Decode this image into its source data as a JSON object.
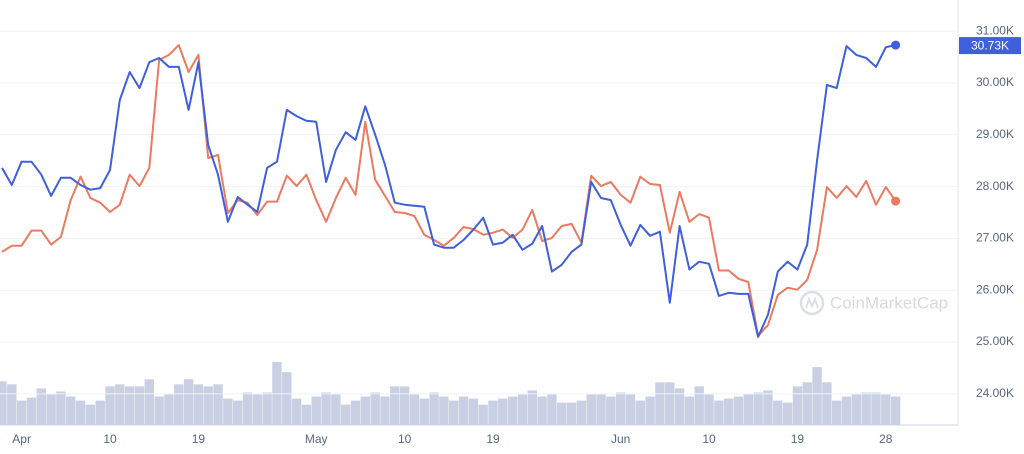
{
  "chart_data": {
    "type": "line",
    "categories": [
      null,
      null,
      "Apr",
      null,
      null,
      null,
      null,
      null,
      null,
      null,
      null,
      "10",
      null,
      null,
      null,
      null,
      null,
      null,
      null,
      null,
      "19",
      null,
      null,
      null,
      null,
      null,
      null,
      null,
      null,
      null,
      null,
      null,
      "May",
      null,
      null,
      null,
      null,
      null,
      null,
      null,
      null,
      "10",
      null,
      null,
      null,
      null,
      null,
      null,
      null,
      null,
      "19",
      null,
      null,
      null,
      null,
      null,
      null,
      null,
      null,
      null,
      null,
      null,
      null,
      "Jun",
      null,
      null,
      null,
      null,
      null,
      null,
      null,
      null,
      "10",
      null,
      null,
      null,
      null,
      null,
      null,
      null,
      null,
      "19",
      null,
      null,
      null,
      null,
      null,
      null,
      null,
      null,
      "28",
      null
    ],
    "series": [
      {
        "color": "#ea7a60",
        "values": [
          26740,
          26860,
          26860,
          27150,
          27150,
          26880,
          27030,
          27740,
          28190,
          27780,
          27690,
          27510,
          27650,
          28230,
          28010,
          28360,
          30440,
          30540,
          30730,
          30210,
          30540,
          28550,
          28610,
          27490,
          27740,
          27690,
          27450,
          27710,
          27710,
          28210,
          28010,
          28230,
          27740,
          27320,
          27780,
          28170,
          27840,
          29250,
          28130,
          27820,
          27510,
          27490,
          27430,
          27070,
          26970,
          26860,
          27010,
          27220,
          27180,
          27070,
          27110,
          27170,
          27010,
          27170,
          27550,
          26950,
          27010,
          27240,
          27280,
          26920,
          28210,
          28010,
          28090,
          27840,
          27690,
          28190,
          28050,
          28030,
          27110,
          27900,
          27320,
          27470,
          27400,
          26380,
          26380,
          26220,
          26160,
          25120,
          25330,
          25910,
          26050,
          26010,
          26200,
          26780,
          27990,
          27780,
          28010,
          27800,
          28110,
          27650,
          27990,
          27720
        ]
      },
      {
        "color": "#3f5fdc",
        "values": [
          28360,
          28030,
          28480,
          28480,
          28230,
          27820,
          28170,
          28170,
          28030,
          27940,
          27970,
          28320,
          29670,
          30210,
          29900,
          30400,
          30480,
          30310,
          30310,
          29480,
          30400,
          28800,
          28230,
          27320,
          27800,
          27650,
          27510,
          28360,
          28480,
          29480,
          29360,
          29270,
          29250,
          28090,
          28710,
          29050,
          28900,
          29550,
          29000,
          28420,
          27690,
          27650,
          27630,
          27610,
          26880,
          26820,
          26820,
          26970,
          27170,
          27400,
          26880,
          26920,
          27070,
          26780,
          26900,
          27240,
          26360,
          26490,
          26740,
          26880,
          28090,
          27780,
          27740,
          27260,
          26860,
          27260,
          27050,
          27130,
          25760,
          27240,
          26400,
          26550,
          26510,
          25890,
          25950,
          25930,
          25930,
          25100,
          25530,
          26360,
          26550,
          26400,
          26880,
          28510,
          29960,
          29900,
          30710,
          30540,
          30480,
          30310,
          30690,
          30730
        ]
      }
    ],
    "volume": [
      43,
      40,
      24,
      27,
      36,
      30,
      33,
      28,
      24,
      20,
      24,
      38,
      40,
      38,
      38,
      45,
      28,
      30,
      40,
      45,
      40,
      38,
      40,
      26,
      24,
      32,
      30,
      32,
      62,
      52,
      26,
      20,
      28,
      32,
      30,
      20,
      24,
      28,
      32,
      28,
      38,
      38,
      30,
      26,
      32,
      28,
      24,
      28,
      26,
      20,
      24,
      26,
      28,
      30,
      34,
      28,
      30,
      22,
      22,
      24,
      30,
      30,
      28,
      32,
      30,
      24,
      28,
      42,
      42,
      36,
      28,
      38,
      30,
      24,
      26,
      28,
      30,
      32,
      34,
      24,
      22,
      38,
      42,
      57,
      42,
      24,
      28,
      30,
      32,
      32,
      30,
      28
    ],
    "volume_color": "#c9d0e3",
    "ylim": [
      23400,
      31600
    ],
    "yticks": [
      {
        "value": 24000,
        "label": "24.00K"
      },
      {
        "value": 25000,
        "label": "25.00K"
      },
      {
        "value": 26000,
        "label": "26.00K"
      },
      {
        "value": 27000,
        "label": "27.00K"
      },
      {
        "value": 28000,
        "label": "28.00K"
      },
      {
        "value": 29000,
        "label": "29.00K"
      },
      {
        "value": 30000,
        "label": "30.00K"
      },
      {
        "value": 31000,
        "label": "31.00K"
      }
    ],
    "grid": true,
    "current_label": {
      "value": 30730,
      "label": "30.73K"
    },
    "watermark": "CoinMarketCap"
  }
}
